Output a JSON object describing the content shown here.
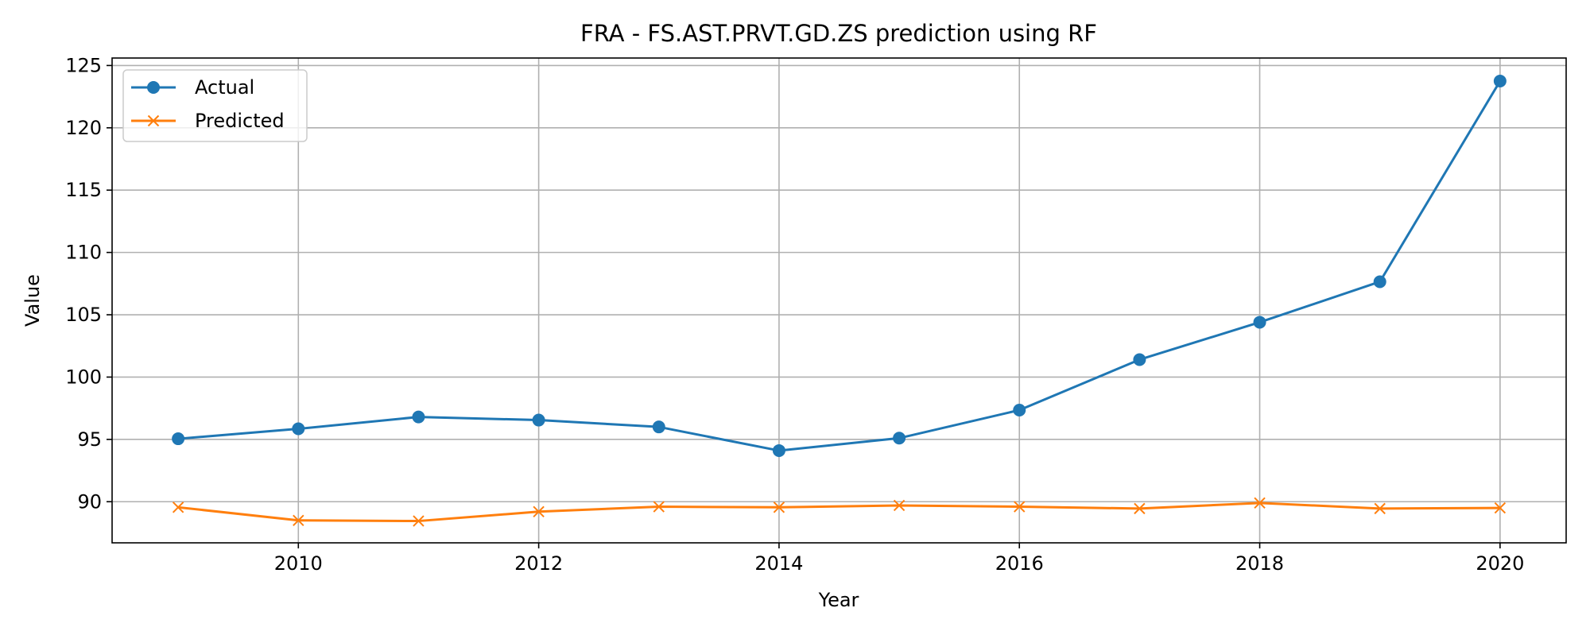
{
  "chart_data": {
    "type": "line",
    "title": "FRA - FS.AST.PRVT.GD.ZS prediction using RF",
    "xlabel": "Year",
    "ylabel": "Value",
    "x": [
      2009,
      2010,
      2011,
      2012,
      2013,
      2014,
      2015,
      2016,
      2017,
      2018,
      2019,
      2020
    ],
    "xlim": [
      2008.45,
      2020.55
    ],
    "ylim": [
      86.7,
      125.6
    ],
    "xticks": [
      2010,
      2012,
      2014,
      2016,
      2018,
      2020
    ],
    "yticks": [
      90,
      95,
      100,
      105,
      110,
      115,
      120,
      125
    ],
    "grid": true,
    "legend_position": "top-left",
    "series": [
      {
        "name": "Actual",
        "marker": "circle",
        "color": "#1f77b4",
        "values": [
          95.05,
          95.85,
          96.8,
          96.55,
          96.0,
          94.1,
          95.1,
          97.35,
          101.4,
          104.4,
          107.65,
          123.75
        ]
      },
      {
        "name": "Predicted",
        "marker": "x",
        "color": "#ff7f0e",
        "values": [
          89.55,
          88.5,
          88.45,
          89.2,
          89.6,
          89.55,
          89.7,
          89.6,
          89.45,
          89.9,
          89.45,
          89.5
        ]
      }
    ]
  }
}
